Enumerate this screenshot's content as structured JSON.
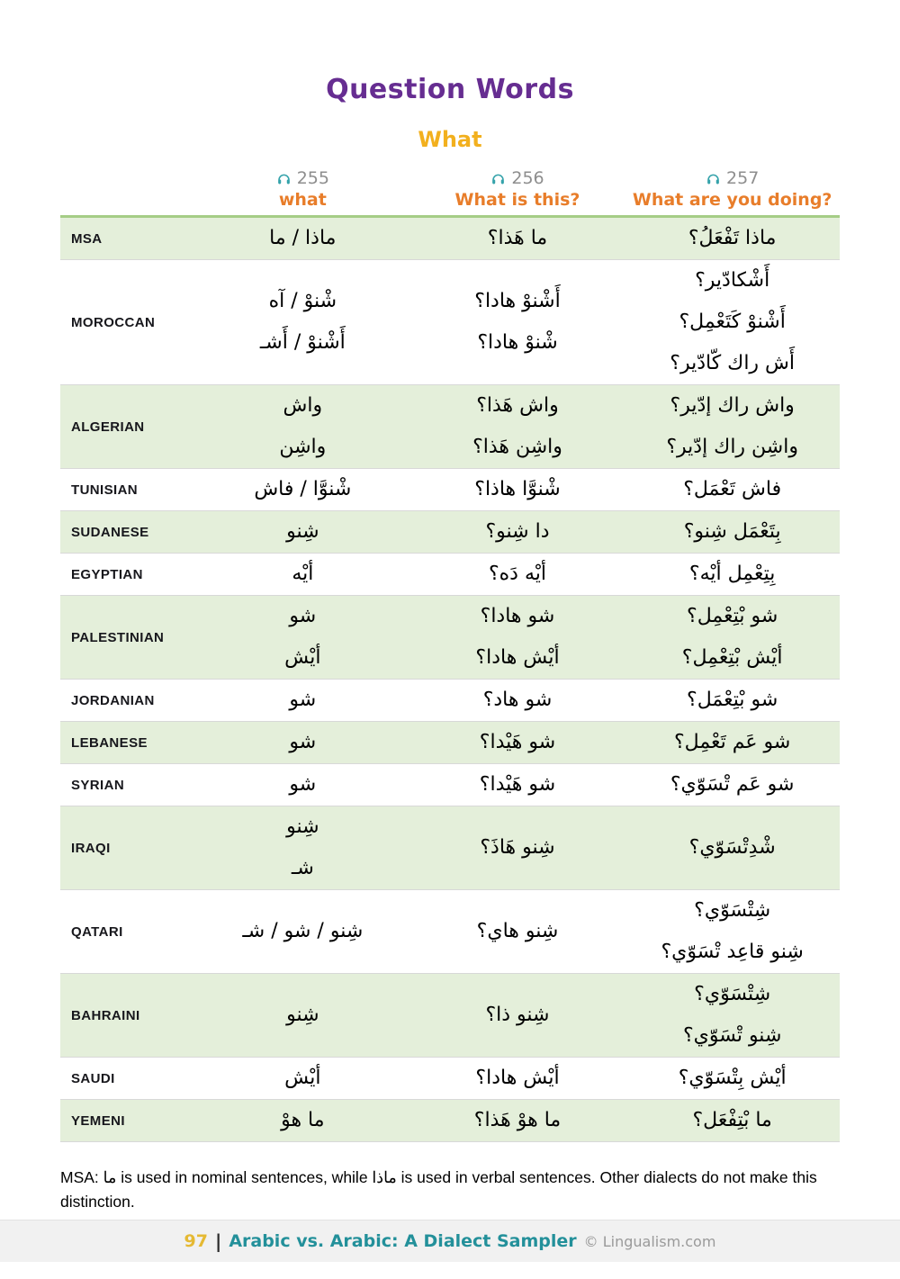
{
  "page": {
    "title": "Question Words",
    "subtitle": "What"
  },
  "columns": [
    {
      "icon": "headphones-icon",
      "track": "255",
      "label": "what"
    },
    {
      "icon": "headphones-icon",
      "track": "256",
      "label": "What is this?"
    },
    {
      "icon": "headphones-icon",
      "track": "257",
      "label": "What are you doing?"
    }
  ],
  "table": {
    "rows": [
      {
        "dialect": "MSA",
        "c1": [
          "ماذا / ما"
        ],
        "c2": [
          "ما هَذا؟"
        ],
        "c3": [
          "ماذا تَفْعَلُ؟"
        ]
      },
      {
        "dialect": "MOROCCAN",
        "c1": [
          "شْنوْ / آه",
          "أَشْنوْ / أَشـ"
        ],
        "c2": [
          "أَشْنوْ هادا؟",
          "شْنوْ هادا؟"
        ],
        "c3": [
          "أَشْكادّير؟",
          "أَشْنوْ كَتَعْمِل؟",
          "أَش راك كّادّير؟"
        ]
      },
      {
        "dialect": "ALGERIAN",
        "c1": [
          "واش",
          "واشِن"
        ],
        "c2": [
          "واش هَذا؟",
          "واشِن هَذا؟"
        ],
        "c3": [
          "واش راك إدّير؟",
          "واشِن راك إدّير؟"
        ]
      },
      {
        "dialect": "TUNISIAN",
        "c1": [
          "شْنوَّا / فاش"
        ],
        "c2": [
          "شْنوَّا هاذا؟"
        ],
        "c3": [
          "فاش تَعْمَل؟"
        ]
      },
      {
        "dialect": "SUDANESE",
        "c1": [
          "شِنو"
        ],
        "c2": [
          "دا شِنو؟"
        ],
        "c3": [
          "بِتَعْمَل شِنو؟"
        ]
      },
      {
        "dialect": "EGYPTIAN",
        "c1": [
          "أيْه"
        ],
        "c2": [
          "أيْه دَه؟"
        ],
        "c3": [
          "بِتِعْمِل أيْه؟"
        ]
      },
      {
        "dialect": "PALESTINIAN",
        "c1": [
          "شو",
          "أيْش"
        ],
        "c2": [
          "شو هادا؟",
          "أيْش هادا؟"
        ],
        "c3": [
          "شو بْتِعْمِل؟",
          "أيْش بْتِعْمِل؟"
        ]
      },
      {
        "dialect": "JORDANIAN",
        "c1": [
          "شو"
        ],
        "c2": [
          "شو هاد؟"
        ],
        "c3": [
          "شو بْتِعْمَل؟"
        ]
      },
      {
        "dialect": "LEBANESE",
        "c1": [
          "شو"
        ],
        "c2": [
          "شو هَيْدا؟"
        ],
        "c3": [
          "شو عَم تَعْمِل؟"
        ]
      },
      {
        "dialect": "SYRIAN",
        "c1": [
          "شو"
        ],
        "c2": [
          "شو هَيْدا؟"
        ],
        "c3": [
          "شو عَم تْسَوّي؟"
        ]
      },
      {
        "dialect": "IRAQI",
        "c1": [
          "شِنو",
          "شـ"
        ],
        "c2": [
          "شِنو هَاذَ؟"
        ],
        "c3": [
          "شْدِتْسَوّي؟"
        ]
      },
      {
        "dialect": "QATARI",
        "c1": [
          "شِنو / شو / شـ"
        ],
        "c2": [
          "شِنو هاي؟"
        ],
        "c3": [
          "شِتْسَوّي؟",
          "شِنو قاعِد تْسَوّي؟"
        ]
      },
      {
        "dialect": "BAHRAINI",
        "c1": [
          "شِنو"
        ],
        "c2": [
          "شِنو ذا؟"
        ],
        "c3": [
          "شِتْسَوّي؟",
          "شِنو تْسَوّي؟"
        ]
      },
      {
        "dialect": "SAUDI",
        "c1": [
          "أيْش"
        ],
        "c2": [
          "أيْش هادا؟"
        ],
        "c3": [
          "أيْش بِتْسَوّي؟"
        ]
      },
      {
        "dialect": "YEMENI",
        "c1": [
          "ما هوْ"
        ],
        "c2": [
          "ما هوْ هَذا؟"
        ],
        "c3": [
          "ما بْتِفْعَل؟"
        ]
      }
    ]
  },
  "note": "MSA: ما is used in nominal sentences, while ماذا is used in verbal sentences. Other dialects do not make this distinction.",
  "footer": {
    "page_number": "97",
    "separator": "|",
    "book_title": "Arabic vs. Arabic: A Dialect Sampler",
    "copyright": "© Lingualism.com"
  },
  "colors": {
    "title_purple": "#662d91",
    "subtitle_gold": "#f2b01e",
    "header_orange": "#e87d2a",
    "headphone_teal": "#35a3ab",
    "track_gray": "#8e8e8e",
    "row_green": "#e4efda",
    "table_border_green": "#a5cd86",
    "footer_teal": "#23909a",
    "footer_gold": "#e5b933"
  }
}
